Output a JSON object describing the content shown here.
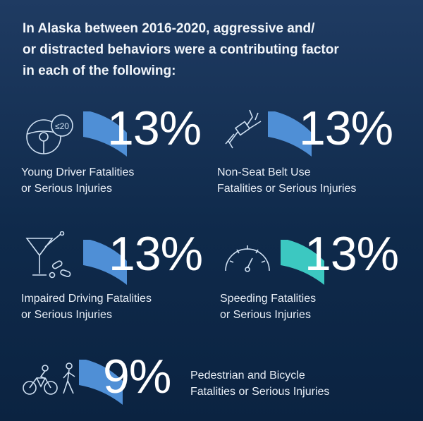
{
  "headline": [
    "In Alaska between 2016-2020, aggressive and/",
    "or distracted behaviors were a contributing factor",
    "in each of the following:"
  ],
  "colors": {
    "accent_blue": "#4f8fd6",
    "accent_teal": "#3cc8c1",
    "text": "#ffffff",
    "background": "#12304f"
  },
  "stats": [
    {
      "icon": "steering-wheel-speed-limit-icon",
      "speed_sign": "≤20",
      "percent": "13%",
      "label_line1": "Young Driver Fatalities",
      "label_line2": "or Serious Injuries",
      "accent": "blue"
    },
    {
      "icon": "seat-belt-icon",
      "percent": "13%",
      "label_line1": "Non-Seat Belt Use",
      "label_line2": "Fatalities or Serious Injuries",
      "accent": "blue"
    },
    {
      "icon": "cocktail-and-pills-icon",
      "percent": "13%",
      "label_line1": "Impaired Driving Fatalities",
      "label_line2": "or Serious Injuries",
      "accent": "blue"
    },
    {
      "icon": "speedometer-icon",
      "percent": "13%",
      "label_line1": "Speeding Fatalities",
      "label_line2": "or Serious Injuries",
      "accent": "teal"
    },
    {
      "icon": "cyclist-and-pedestrian-icon",
      "percent": "9%",
      "label_line1": "Pedestrian and Bicycle",
      "label_line2": "Fatalities or Serious Injuries",
      "accent": "blue"
    }
  ]
}
